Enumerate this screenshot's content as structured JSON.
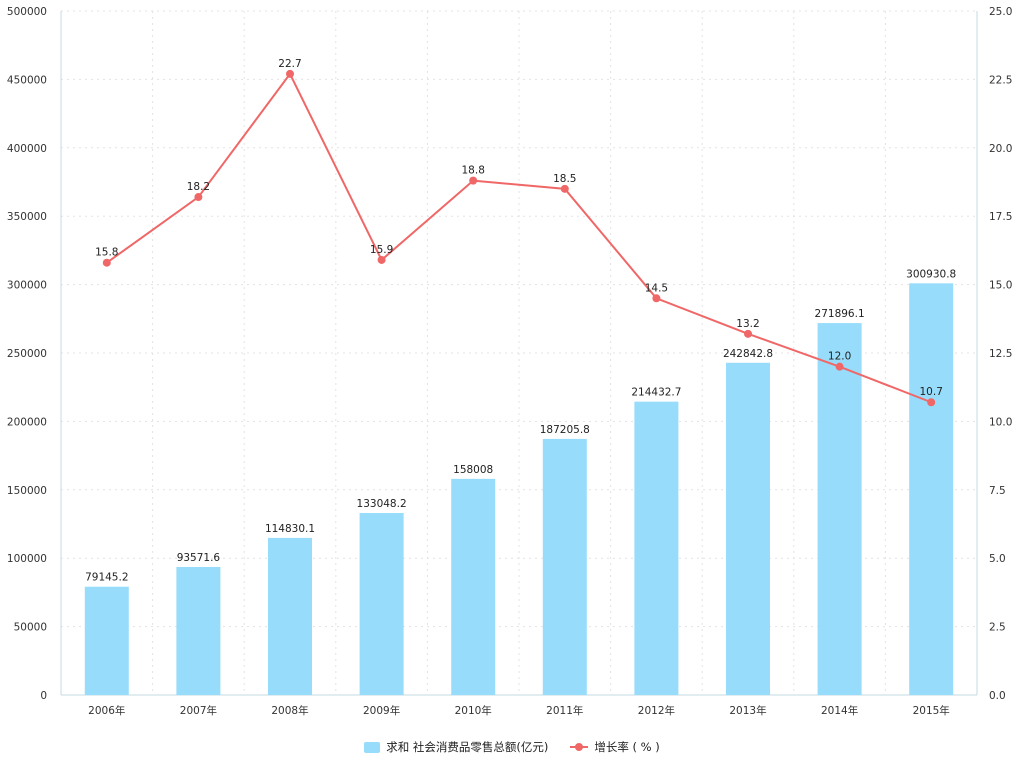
{
  "chart_data": {
    "type": "bar",
    "categories": [
      "2006年",
      "2007年",
      "2008年",
      "2009年",
      "2010年",
      "2011年",
      "2012年",
      "2013年",
      "2014年",
      "2015年"
    ],
    "series": [
      {
        "name": "求和 社会消费品零售总额(亿元)",
        "type": "bar",
        "axis": "left",
        "color": "#97ddfb",
        "values": [
          79145.2,
          93571.6,
          114830.1,
          133048.2,
          158008,
          187205.8,
          214432.7,
          242842.8,
          271896.1,
          300930.8
        ],
        "labels": [
          "79145.2",
          "93571.6",
          "114830.1",
          "133048.2",
          "158008",
          "187205.8",
          "214432.7",
          "242842.8",
          "271896.1",
          "300930.8"
        ]
      },
      {
        "name": "增长率 ( % )",
        "type": "line",
        "axis": "right",
        "color": "#f06767",
        "values": [
          15.8,
          18.2,
          22.7,
          15.9,
          18.8,
          18.5,
          14.5,
          13.2,
          12.0,
          10.7
        ],
        "labels": [
          "15.8",
          "18.2",
          "22.7",
          "15.9",
          "18.8",
          "18.5",
          "14.5",
          "13.2",
          "12.0",
          "10.7"
        ]
      }
    ],
    "y_left": {
      "ylim": [
        0,
        500000
      ],
      "ticks": [
        "0",
        "50000",
        "100000",
        "150000",
        "200000",
        "250000",
        "300000",
        "350000",
        "400000",
        "450000",
        "500000"
      ]
    },
    "y_right": {
      "ylim": [
        0,
        25
      ],
      "ticks": [
        "0.0",
        "2.5",
        "5.0",
        "7.5",
        "10.0",
        "12.5",
        "15.0",
        "17.5",
        "20.0",
        "22.5",
        "25.0"
      ]
    },
    "title": "",
    "xlabel": "",
    "ylabel": "",
    "grid": true,
    "legend_position": "bottom-center"
  }
}
